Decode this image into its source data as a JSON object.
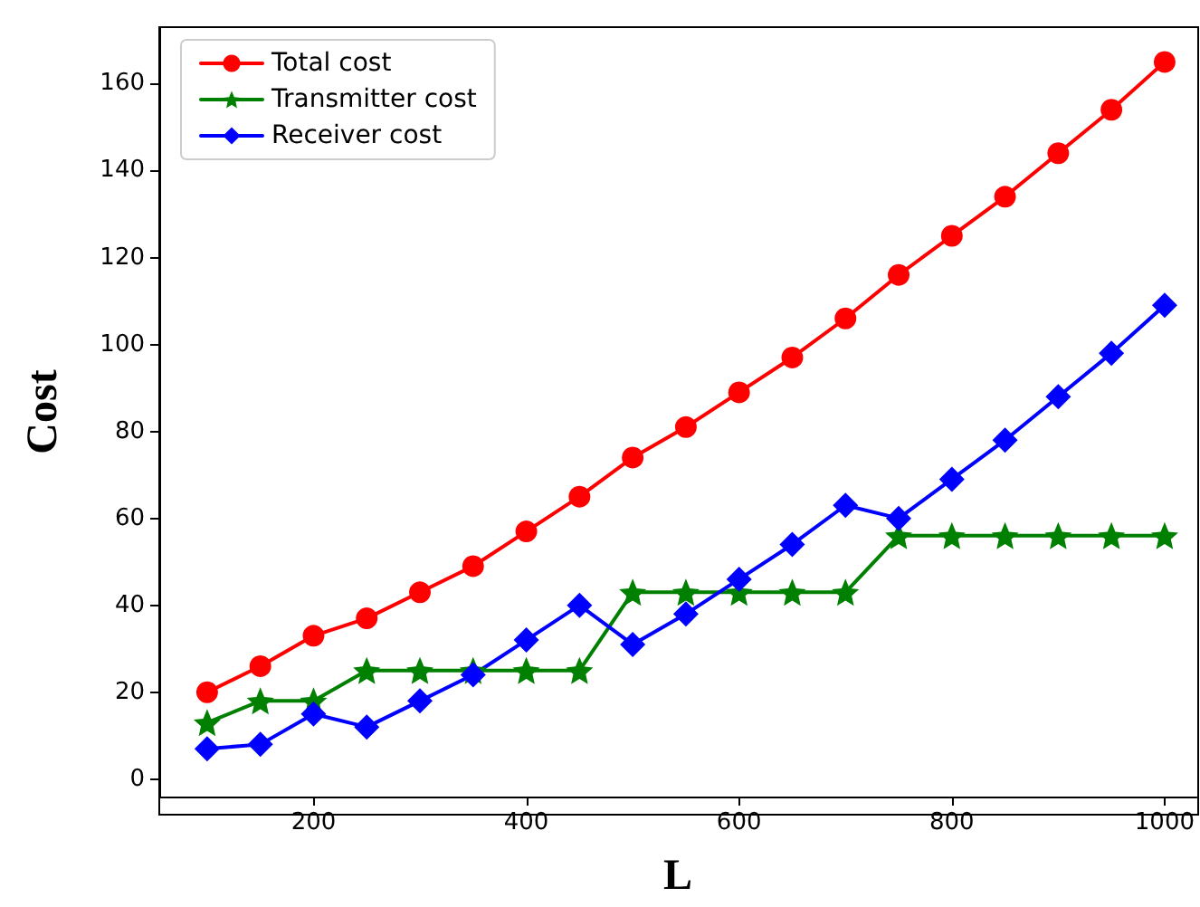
{
  "chart_data": {
    "type": "line",
    "xlabel": "L",
    "ylabel": "Cost",
    "x": [
      100,
      150,
      200,
      250,
      300,
      350,
      400,
      450,
      500,
      550,
      600,
      650,
      700,
      750,
      800,
      850,
      900,
      950,
      1000
    ],
    "series": [
      {
        "name": "Total cost",
        "color": "#ff0000",
        "marker": "circle",
        "values": [
          20,
          26,
          33,
          37,
          43,
          49,
          57,
          65,
          74,
          81,
          89,
          97,
          106,
          116,
          125,
          134,
          144,
          154,
          165
        ]
      },
      {
        "name": "Transmitter cost",
        "color": "#008000",
        "marker": "star",
        "values": [
          13,
          18,
          18,
          25,
          25,
          25,
          25,
          25,
          43,
          43,
          43,
          43,
          43,
          56,
          56,
          56,
          56,
          56,
          56
        ]
      },
      {
        "name": "Receiver cost",
        "color": "#0000ff",
        "marker": "diamond",
        "values": [
          7,
          8,
          15,
          12,
          18,
          24,
          32,
          40,
          31,
          38,
          46,
          54,
          63,
          60,
          69,
          78,
          88,
          98,
          109
        ]
      }
    ],
    "xlim": [
      55,
      1030
    ],
    "xticks": [
      200,
      400,
      600,
      800,
      1000
    ],
    "ylim": [
      -4,
      173
    ],
    "yticks": [
      0,
      20,
      40,
      60,
      80,
      100,
      120,
      140,
      160
    ],
    "grid": false,
    "legend": "top left",
    "line_style": "solid"
  }
}
